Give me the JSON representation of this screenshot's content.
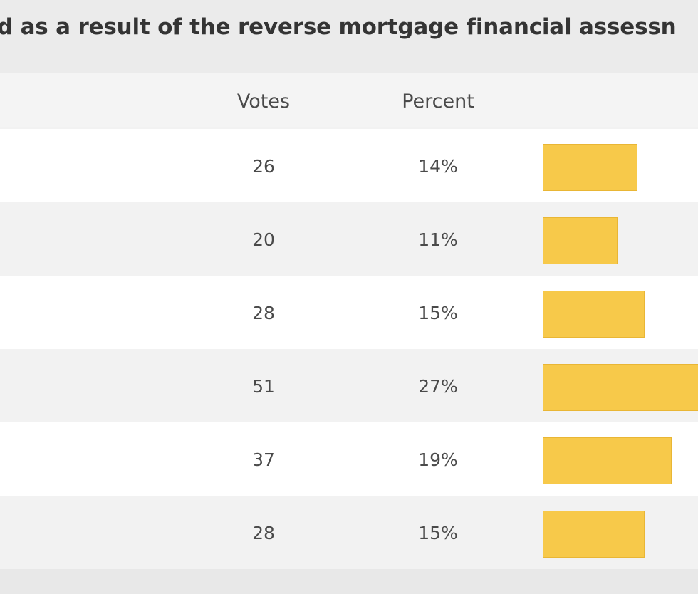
{
  "poll": {
    "title": "d as a result of the reverse mortgage financial assessn",
    "headers": {
      "votes": "Votes",
      "percent": "Percent"
    },
    "bar_color": "#f7c94a",
    "rows": [
      {
        "votes": "26",
        "percent": "14%",
        "share": 0.14
      },
      {
        "votes": "20",
        "percent": "11%",
        "share": 0.11
      },
      {
        "votes": "28",
        "percent": "15%",
        "share": 0.15
      },
      {
        "votes": "51",
        "percent": "27%",
        "share": 0.27
      },
      {
        "votes": "37",
        "percent": "19%",
        "share": 0.19
      },
      {
        "votes": "28",
        "percent": "15%",
        "share": 0.15
      }
    ]
  }
}
